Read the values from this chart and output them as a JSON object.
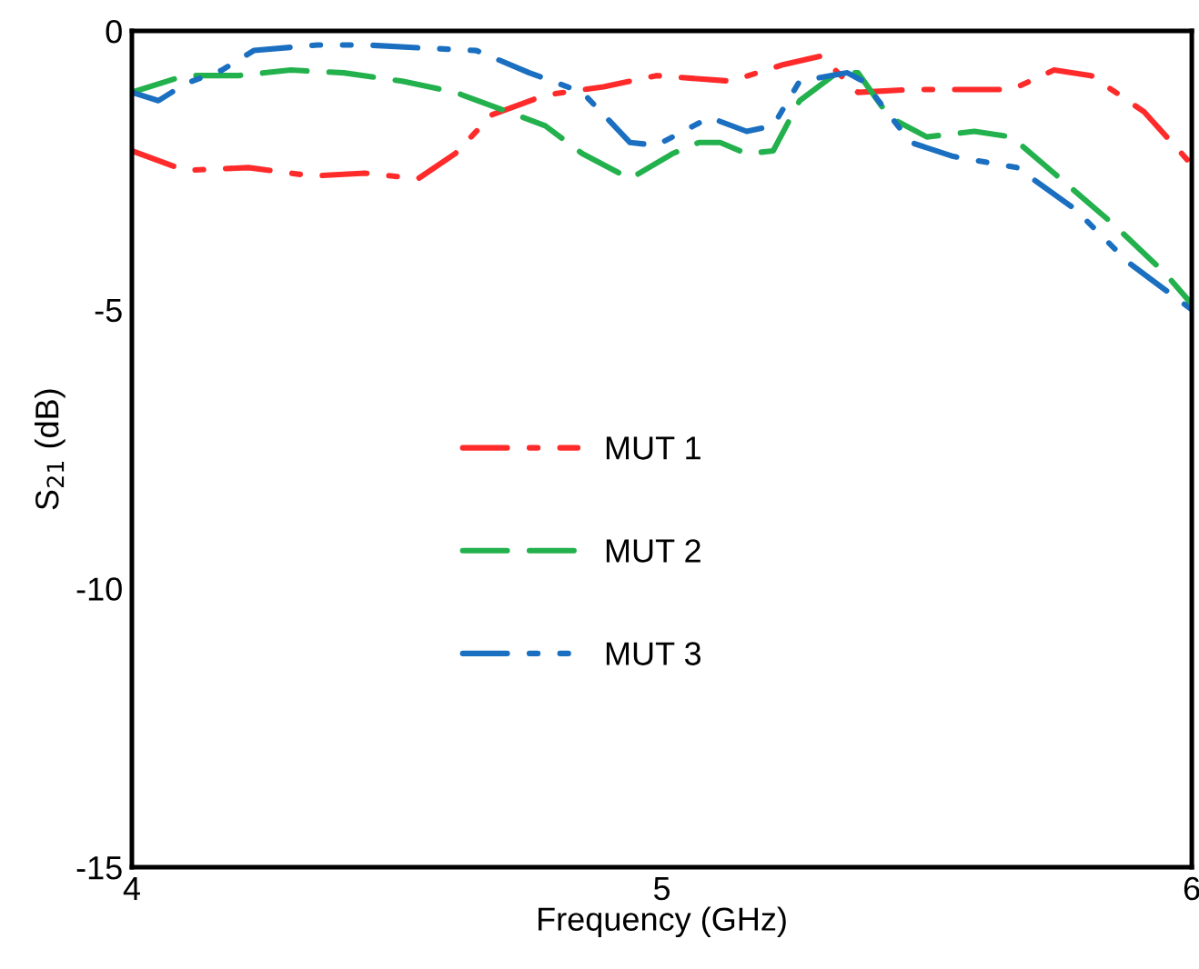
{
  "chart_data": {
    "type": "line",
    "xlabel": "Frequency (GHz)",
    "ylabel": "S$_{21}$ (dB)",
    "xlim": [
      4,
      6
    ],
    "xticks": [
      4,
      5,
      6
    ],
    "ylim": [
      -15,
      0
    ],
    "yticks": [
      -15,
      -10,
      -5,
      0
    ],
    "grid": false,
    "legend": "center",
    "marker": "none",
    "series": [
      {
        "name": "MUT 1",
        "color": "#ff2a2a",
        "line_style": "dashdot",
        "x": [
          4.0,
          4.1,
          4.22,
          4.34,
          4.44,
          4.54,
          4.61,
          4.68,
          4.78,
          4.89,
          4.99,
          5.13,
          5.23,
          5.3,
          5.37,
          5.47,
          5.54,
          5.66,
          5.74,
          5.81,
          5.91,
          6.0
        ],
        "values": [
          -2.15,
          -2.5,
          -2.45,
          -2.6,
          -2.55,
          -2.65,
          -2.2,
          -1.5,
          -1.15,
          -1.0,
          -0.8,
          -0.9,
          -0.6,
          -0.45,
          -1.1,
          -1.05,
          -1.05,
          -1.05,
          -0.7,
          -0.8,
          -1.45,
          -2.4
        ]
      },
      {
        "name": "MUT 2",
        "color": "#22b14c",
        "line_style": "dashed",
        "x": [
          4.0,
          4.1,
          4.2,
          4.3,
          4.4,
          4.51,
          4.61,
          4.71,
          4.78,
          4.85,
          4.94,
          5.02,
          5.07,
          5.11,
          5.16,
          5.21,
          5.26,
          5.33,
          5.37,
          5.43,
          5.5,
          5.59,
          5.66,
          5.74,
          5.85,
          5.95,
          6.0
        ],
        "values": [
          -1.1,
          -0.8,
          -0.8,
          -0.7,
          -0.75,
          -0.9,
          -1.1,
          -1.45,
          -1.7,
          -2.2,
          -2.65,
          -2.2,
          -2.0,
          -2.0,
          -2.2,
          -2.15,
          -1.25,
          -0.75,
          -0.75,
          -1.55,
          -1.9,
          -1.8,
          -1.9,
          -2.55,
          -3.45,
          -4.35,
          -4.9
        ]
      },
      {
        "name": "MUT 3",
        "color": "#1a6fc0",
        "line_style": "dashdotdot",
        "x": [
          4.0,
          4.05,
          4.1,
          4.17,
          4.23,
          4.35,
          4.44,
          4.54,
          4.65,
          4.75,
          4.85,
          4.94,
          4.99,
          5.09,
          5.16,
          5.21,
          5.26,
          5.35,
          5.38,
          5.47,
          5.55,
          5.67,
          5.78,
          5.88,
          6.0
        ],
        "values": [
          -1.1,
          -1.25,
          -0.95,
          -0.7,
          -0.35,
          -0.25,
          -0.25,
          -0.3,
          -0.35,
          -0.75,
          -1.1,
          -2.0,
          -2.05,
          -1.55,
          -1.8,
          -1.7,
          -0.9,
          -0.75,
          -0.9,
          -2.0,
          -2.25,
          -2.45,
          -3.2,
          -4.15,
          -5.0
        ]
      }
    ]
  }
}
